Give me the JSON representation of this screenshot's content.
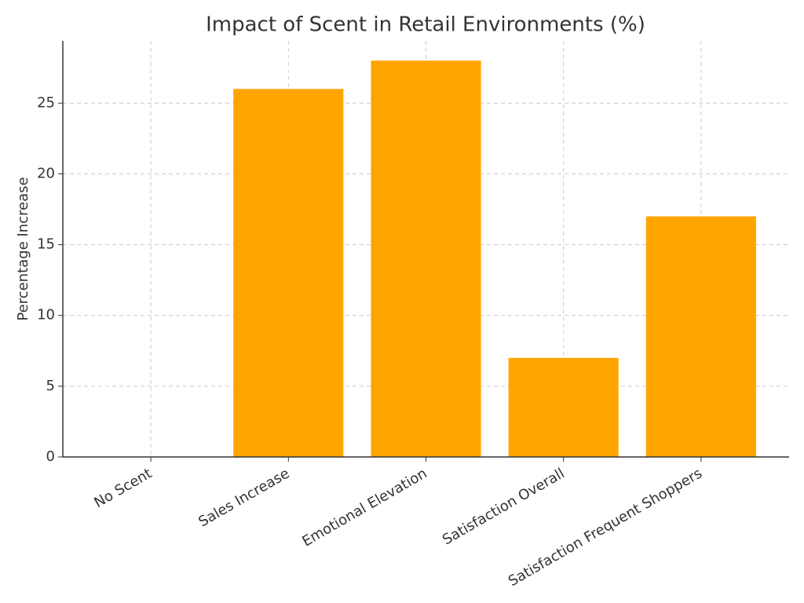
{
  "chart_data": {
    "type": "bar",
    "title": "Impact of Scent in Retail Environments (%)",
    "ylabel": "Percentage Increase",
    "categories": [
      "No Scent",
      "Sales Increase",
      "Emotional Elevation",
      "Satisfaction Overall",
      "Satisfaction Frequent Shoppers"
    ],
    "values": [
      0,
      26,
      28,
      7,
      17
    ],
    "color": "#ffa500",
    "ylim": [
      0,
      29.4
    ],
    "yticks": [
      0,
      5,
      10,
      15,
      20,
      25
    ],
    "grid": true
  }
}
